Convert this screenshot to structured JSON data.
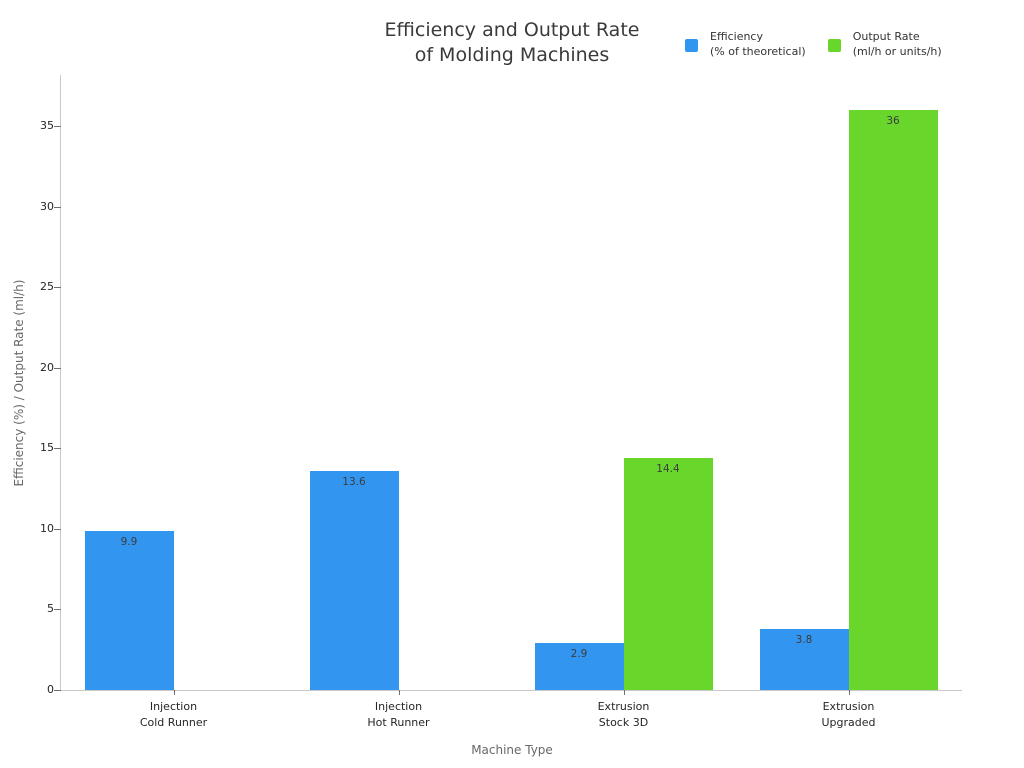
{
  "chart_data": {
    "type": "bar",
    "title_lines": [
      "Efficiency and Output Rate",
      "of Molding Machines"
    ],
    "xlabel": "Machine Type",
    "ylabel": "Efficiency (%) / Output Rate (ml/h)",
    "categories": [
      [
        "Injection",
        "Cold Runner"
      ],
      [
        "Injection",
        "Hot Runner"
      ],
      [
        "Extrusion",
        "Stock 3D"
      ],
      [
        "Extrusion",
        "Upgraded"
      ]
    ],
    "series": [
      {
        "name_lines": [
          "Efficiency",
          "(% of theoretical)"
        ],
        "color": "#3296f0",
        "values": [
          9.9,
          13.6,
          2.9,
          3.8
        ]
      },
      {
        "name_lines": [
          "Output Rate",
          "(ml/h or units/h)"
        ],
        "color": "#69d62c",
        "values": [
          null,
          null,
          14.4,
          36
        ]
      }
    ],
    "yticks": [
      0,
      5,
      10,
      15,
      20,
      25,
      30,
      35
    ],
    "ylim": [
      0,
      38
    ],
    "grid": false,
    "legend_position": "top-right",
    "bar_value_labels": [
      [
        "9.9",
        "13.6",
        "2.9",
        "3.8"
      ],
      [
        null,
        null,
        "14.4",
        "36"
      ]
    ]
  }
}
